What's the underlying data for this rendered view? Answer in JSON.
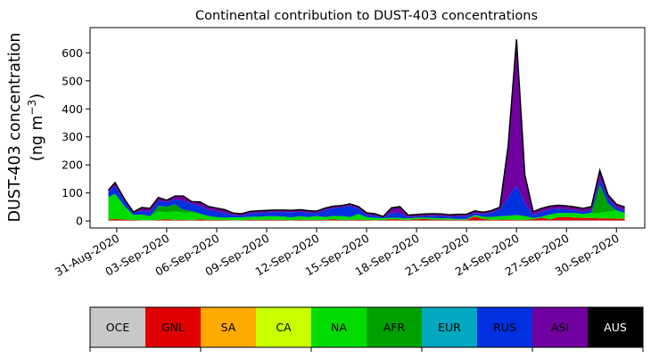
{
  "chart_data": {
    "type": "area",
    "stacked": true,
    "title": "Continental contribution to DUST-403 concentrations",
    "ylabel_line1": "DUST-403 concentration",
    "ylabel_line2": "(ng m",
    "ylabel_sup": "−3",
    "ylabel_close": ")",
    "ylim": [
      -25,
      690
    ],
    "yticks": [
      0,
      100,
      200,
      300,
      400,
      500,
      600
    ],
    "xlim": [
      -1.6,
      31.7
    ],
    "xticks": [
      {
        "pos": 0,
        "label": "31-Aug-2020"
      },
      {
        "pos": 3,
        "label": "03-Sep-2020"
      },
      {
        "pos": 6,
        "label": "06-Sep-2020"
      },
      {
        "pos": 9,
        "label": "09-Sep-2020"
      },
      {
        "pos": 12,
        "label": "12-Sep-2020"
      },
      {
        "pos": 15,
        "label": "15-Sep-2020"
      },
      {
        "pos": 18,
        "label": "18-Sep-2020"
      },
      {
        "pos": 21,
        "label": "21-Sep-2020"
      },
      {
        "pos": 24,
        "label": "24-Sep-2020"
      },
      {
        "pos": 27,
        "label": "27-Sep-2020"
      },
      {
        "pos": 30,
        "label": "30-Sep-2020"
      }
    ],
    "x": [
      -0.5,
      -0.1,
      0.5,
      1.0,
      1.5,
      2.0,
      2.5,
      3.0,
      3.5,
      4.0,
      4.5,
      5.0,
      5.5,
      6.0,
      6.5,
      7.0,
      7.5,
      8.0,
      8.5,
      9.0,
      9.5,
      10.0,
      10.5,
      11.0,
      11.5,
      12.0,
      12.5,
      13.0,
      13.5,
      14.0,
      14.5,
      15.0,
      15.5,
      16.0,
      16.5,
      17.0,
      17.5,
      18.0,
      18.5,
      19.0,
      19.5,
      20.0,
      20.5,
      21.0,
      21.5,
      22.0,
      22.5,
      23.0,
      23.5,
      24.0,
      24.5,
      25.0,
      25.5,
      26.0,
      26.5,
      27.0,
      27.5,
      28.0,
      28.5,
      29.0,
      29.5,
      30.0,
      30.5
    ],
    "series": [
      {
        "name": "OCE",
        "color": "#c8c8c8",
        "values": [
          2,
          2,
          2,
          2,
          2,
          2,
          2,
          2,
          2,
          2,
          2,
          2,
          2,
          2,
          2,
          2,
          2,
          2,
          2,
          2,
          2,
          2,
          2,
          2,
          2,
          2,
          2,
          2,
          2,
          2,
          2,
          2,
          2,
          2,
          2,
          2,
          2,
          2,
          2,
          2,
          2,
          2,
          2,
          2,
          2,
          2,
          2,
          2,
          2,
          2,
          2,
          2,
          2,
          2,
          2,
          2,
          2,
          2,
          2,
          2,
          2,
          2,
          2
        ]
      },
      {
        "name": "GNL",
        "color": "#e00000",
        "values": [
          3,
          5,
          3,
          2,
          1,
          0,
          2,
          4,
          2,
          3,
          1,
          4,
          2,
          2,
          2,
          1,
          1,
          3,
          2,
          3,
          2,
          2,
          1,
          3,
          2,
          2,
          2,
          4,
          2,
          2,
          3,
          2,
          1,
          2,
          4,
          3,
          2,
          4,
          5,
          3,
          3,
          2,
          2,
          2,
          14,
          5,
          2,
          3,
          3,
          2,
          2,
          4,
          10,
          3,
          12,
          12,
          10,
          9,
          9,
          7,
          7,
          6,
          6
        ]
      },
      {
        "name": "SA",
        "color": "#ffaa00",
        "values": [
          0,
          0,
          0,
          0,
          0,
          0,
          0,
          0,
          0,
          0,
          0,
          0,
          0,
          0,
          0,
          0,
          0,
          0,
          0,
          0,
          0,
          0,
          0,
          0,
          0,
          0,
          0,
          0,
          0,
          0,
          0,
          0,
          0,
          0,
          0,
          0,
          0,
          0,
          0,
          0,
          0,
          0,
          0,
          0,
          0,
          0,
          0,
          0,
          0,
          0,
          0,
          0,
          0,
          0,
          0,
          0,
          0,
          0,
          0,
          0,
          0,
          0,
          0
        ]
      },
      {
        "name": "CA",
        "color": "#c8ff00",
        "values": [
          0,
          0,
          0,
          0,
          0,
          0,
          0,
          0,
          0,
          0,
          0,
          0,
          0,
          0,
          0,
          0,
          0,
          0,
          0,
          0,
          0,
          0,
          0,
          0,
          0,
          0,
          0,
          0,
          0,
          0,
          0,
          0,
          0,
          0,
          0,
          0,
          0,
          0,
          0,
          0,
          0,
          0,
          0,
          0,
          0,
          0,
          0,
          0,
          0,
          0,
          0,
          0,
          0,
          0,
          0,
          0,
          0,
          0,
          0,
          0,
          0,
          0,
          0
        ]
      },
      {
        "name": "NA",
        "color": "#00dc00",
        "values": [
          80,
          90,
          45,
          18,
          20,
          15,
          30,
          25,
          30,
          25,
          28,
          20,
          14,
          10,
          8,
          10,
          10,
          10,
          11,
          12,
          13,
          12,
          10,
          12,
          10,
          14,
          10,
          12,
          14,
          10,
          20,
          10,
          8,
          6,
          6,
          6,
          5,
          6,
          5,
          6,
          5,
          5,
          3,
          3,
          5,
          8,
          10,
          12,
          14,
          17,
          14,
          5,
          3,
          18,
          14,
          14,
          16,
          14,
          18,
          20,
          24,
          30,
          20
        ]
      },
      {
        "name": "AFR",
        "color": "#00a000",
        "values": [
          0,
          0,
          0,
          0,
          0,
          0,
          20,
          20,
          25,
          10,
          5,
          0,
          0,
          0,
          0,
          0,
          0,
          0,
          0,
          0,
          0,
          0,
          0,
          0,
          0,
          0,
          0,
          0,
          0,
          0,
          0,
          0,
          0,
          0,
          0,
          0,
          0,
          0,
          0,
          0,
          0,
          0,
          0,
          0,
          0,
          0,
          0,
          0,
          0,
          0,
          0,
          0,
          0,
          0,
          0,
          0,
          0,
          0,
          0,
          100,
          30,
          0,
          0
        ]
      },
      {
        "name": "EUR",
        "color": "#00a8c0",
        "values": [
          0,
          0,
          0,
          0,
          0,
          0,
          0,
          0,
          0,
          0,
          0,
          0,
          0,
          0,
          0,
          0,
          0,
          0,
          0,
          0,
          0,
          0,
          0,
          0,
          0,
          0,
          0,
          0,
          0,
          0,
          0,
          0,
          0,
          0,
          0,
          0,
          0,
          0,
          0,
          0,
          0,
          0,
          0,
          0,
          0,
          0,
          0,
          0,
          0,
          0,
          0,
          0,
          0,
          0,
          0,
          0,
          0,
          0,
          0,
          0,
          0,
          0,
          0
        ]
      },
      {
        "name": "RUS",
        "color": "#0030e0",
        "values": [
          18,
          28,
          18,
          8,
          13,
          16,
          18,
          16,
          18,
          32,
          26,
          28,
          22,
          20,
          16,
          8,
          6,
          12,
          14,
          14,
          15,
          16,
          18,
          16,
          16,
          10,
          25,
          28,
          30,
          40,
          20,
          8,
          8,
          4,
          18,
          18,
          5,
          4,
          6,
          8,
          8,
          6,
          10,
          10,
          8,
          9,
          16,
          25,
          66,
          105,
          45,
          10,
          18,
          18,
          16,
          14,
          10,
          8,
          10,
          20,
          18,
          10,
          10
        ]
      },
      {
        "name": "ASI",
        "color": "#7000a0",
        "values": [
          5,
          10,
          5,
          0,
          10,
          10,
          10,
          5,
          10,
          15,
          5,
          12,
          10,
          10,
          10,
          5,
          5,
          5,
          5,
          5,
          5,
          5,
          5,
          5,
          5,
          5,
          5,
          5,
          5,
          5,
          5,
          5,
          5,
          0,
          15,
          20,
          5,
          5,
          5,
          5,
          5,
          5,
          5,
          5,
          5,
          5,
          5,
          5,
          180,
          520,
          100,
          10,
          10,
          10,
          10,
          10,
          10,
          10,
          10,
          30,
          10,
          10,
          10
        ]
      },
      {
        "name": "AUS",
        "color": "#000000",
        "values": [
          2,
          2,
          2,
          2,
          2,
          2,
          2,
          2,
          2,
          2,
          2,
          2,
          2,
          2,
          2,
          2,
          2,
          2,
          2,
          2,
          2,
          2,
          2,
          2,
          2,
          2,
          2,
          2,
          2,
          2,
          2,
          2,
          2,
          2,
          2,
          2,
          2,
          2,
          2,
          2,
          2,
          2,
          2,
          2,
          2,
          2,
          2,
          2,
          2,
          2,
          2,
          2,
          2,
          2,
          2,
          2,
          2,
          2,
          2,
          2,
          2,
          2,
          2
        ]
      }
    ],
    "legend_placement": "colorbar-bottom",
    "grid": false
  }
}
